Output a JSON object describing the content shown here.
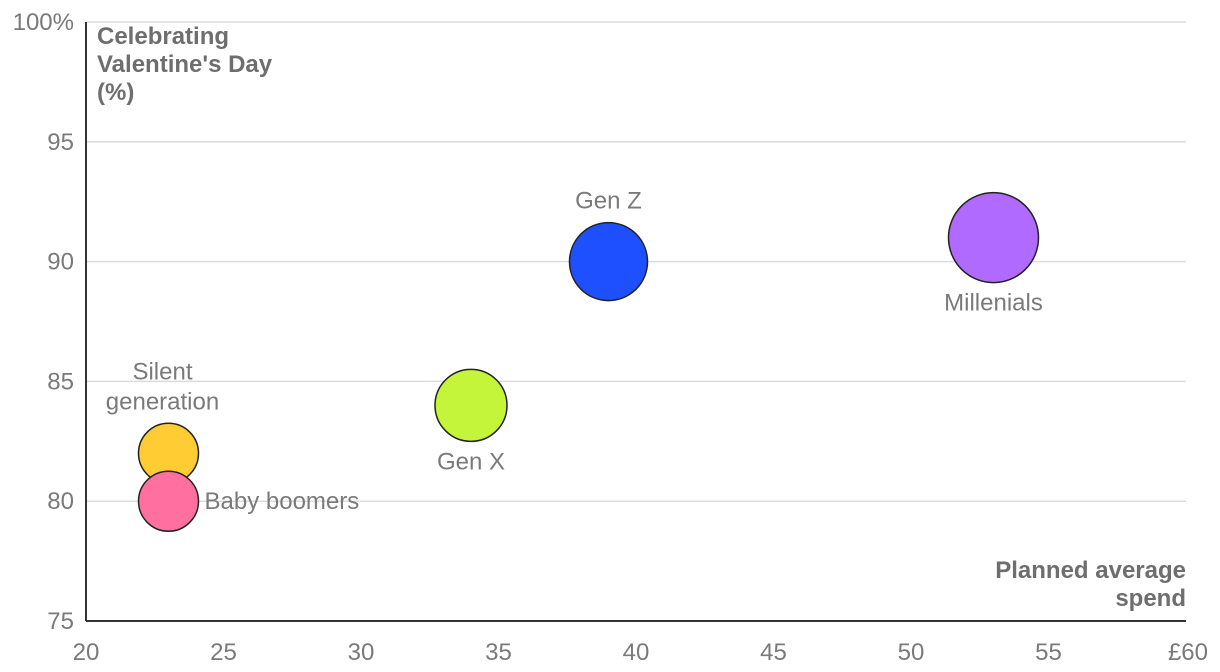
{
  "chart_data": {
    "type": "scatter",
    "title": "",
    "xlabel": "Planned average spend",
    "ylabel": "Celebrating Valentine's Day (%)",
    "xlim": [
      20,
      60
    ],
    "ylim": [
      75,
      100
    ],
    "x_ticks": [
      20,
      25,
      30,
      35,
      40,
      45,
      50,
      55,
      60
    ],
    "x_tick_labels": [
      "20",
      "25",
      "30",
      "35",
      "40",
      "45",
      "50",
      "55",
      "£60"
    ],
    "y_ticks": [
      75,
      80,
      85,
      90,
      95,
      100
    ],
    "y_tick_labels": [
      "75",
      "80",
      "85",
      "90",
      "95",
      "100%"
    ],
    "grid": true,
    "points": [
      {
        "name": "Silent generation",
        "label_lines": [
          "Silent",
          "generation"
        ],
        "x": 23,
        "y": 82,
        "color": "#ffcc33",
        "label_position": "above"
      },
      {
        "name": "Baby boomers",
        "label_lines": [
          "Baby boomers"
        ],
        "x": 23,
        "y": 80,
        "color": "#ff6fa0",
        "label_position": "right"
      },
      {
        "name": "Gen X",
        "label_lines": [
          "Gen X"
        ],
        "x": 34,
        "y": 84,
        "color": "#c5f53a",
        "label_position": "below"
      },
      {
        "name": "Gen Z",
        "label_lines": [
          "Gen Z"
        ],
        "x": 39,
        "y": 90,
        "color": "#1e50ff",
        "label_position": "above"
      },
      {
        "name": "Millenials",
        "label_lines": [
          "Millenials"
        ],
        "x": 53,
        "y": 91,
        "color": "#b06aff",
        "label_position": "below"
      }
    ]
  }
}
